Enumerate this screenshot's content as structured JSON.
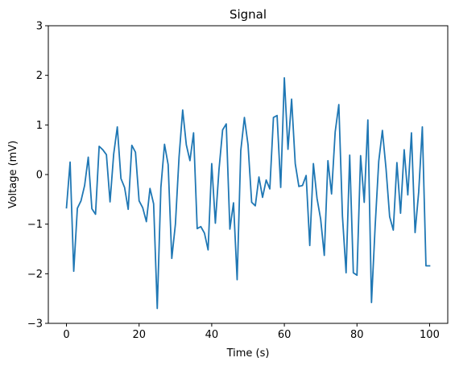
{
  "chart_data": {
    "type": "line",
    "title": "Signal",
    "xlabel": "Time (s)",
    "ylabel": "Voltage (mV)",
    "xlim": [
      -5,
      105
    ],
    "ylim": [
      -3,
      3
    ],
    "xticks": [
      0,
      20,
      40,
      60,
      80,
      100
    ],
    "yticks": [
      -3,
      -2,
      -1,
      0,
      1,
      2,
      3
    ],
    "grid": false,
    "series": [
      {
        "color": "#1f77b4",
        "x": [
          0,
          1,
          2,
          3,
          4,
          5,
          6,
          7,
          8,
          9,
          10,
          11,
          12,
          13,
          14,
          15,
          16,
          17,
          18,
          19,
          20,
          21,
          22,
          23,
          24,
          25,
          26,
          27,
          28,
          29,
          30,
          31,
          32,
          33,
          34,
          35,
          36,
          37,
          38,
          39,
          40,
          41,
          42,
          43,
          44,
          45,
          46,
          47,
          48,
          49,
          50,
          51,
          52,
          53,
          54,
          55,
          56,
          57,
          58,
          59,
          60,
          61,
          62,
          63,
          64,
          65,
          66,
          67,
          68,
          69,
          70,
          71,
          72,
          73,
          74,
          75,
          76,
          77,
          78,
          79,
          80,
          81,
          82,
          83,
          84,
          85,
          86,
          87,
          88,
          89,
          90,
          91,
          92,
          93,
          94,
          95,
          96,
          97,
          98,
          99,
          100
        ],
        "y": [
          -0.67,
          0.25,
          -1.95,
          -0.68,
          -0.53,
          -0.22,
          0.35,
          -0.69,
          -0.8,
          0.57,
          0.5,
          0.4,
          -0.55,
          0.41,
          0.96,
          -0.08,
          -0.26,
          -0.7,
          0.59,
          0.45,
          -0.53,
          -0.67,
          -0.95,
          -0.28,
          -0.59,
          -2.7,
          -0.26,
          0.61,
          0.2,
          -1.69,
          -1.0,
          0.35,
          1.3,
          0.6,
          0.28,
          0.84,
          -1.09,
          -1.05,
          -1.18,
          -1.52,
          0.22,
          -0.98,
          0.1,
          0.9,
          1.02,
          -1.1,
          -0.57,
          -2.12,
          0.48,
          1.15,
          0.6,
          -0.56,
          -0.63,
          -0.05,
          -0.46,
          -0.11,
          -0.29,
          1.15,
          1.19,
          -0.26,
          1.95,
          0.51,
          1.52,
          0.22,
          -0.24,
          -0.22,
          -0.02,
          -1.43,
          0.22,
          -0.48,
          -0.9,
          -1.63,
          0.28,
          -0.39,
          0.86,
          1.41,
          -0.84,
          -1.98,
          0.39,
          -1.98,
          -2.03,
          0.38,
          -0.56,
          1.1,
          -2.58,
          -1.05,
          0.27,
          0.89,
          0.12,
          -0.85,
          -1.12,
          0.24,
          -0.78,
          0.5,
          -0.41,
          0.84,
          -1.17,
          -0.35,
          0.96,
          -1.84,
          -1.84
        ]
      }
    ]
  }
}
